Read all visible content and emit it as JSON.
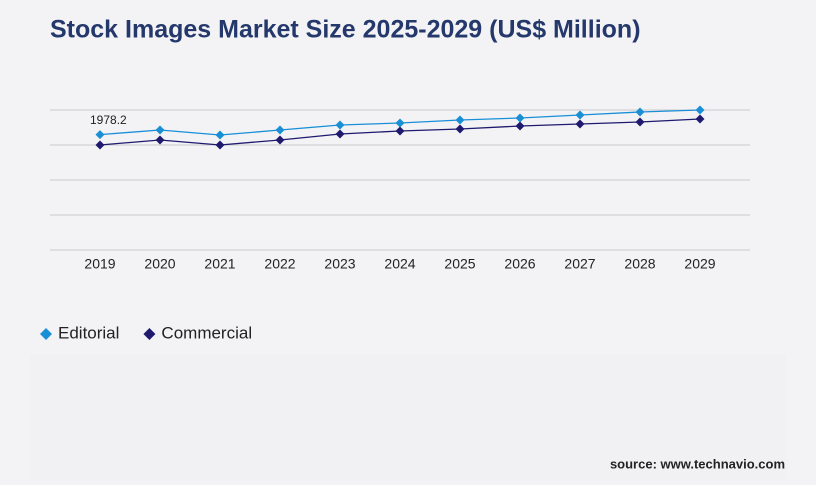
{
  "chart_data": {
    "type": "line",
    "title": "Stock Images Market Size 2025-2029 (US$ Million)",
    "categories": [
      "2019",
      "2020",
      "2021",
      "2022",
      "2023",
      "2024",
      "2025",
      "2026",
      "2027",
      "2028",
      "2029"
    ],
    "series": [
      {
        "name": "Editorial",
        "color": "#1a8fd6",
        "values": [
          1978.2,
          2057,
          1971,
          2057,
          2143,
          2177,
          2229,
          2263,
          2314,
          2366,
          2400
        ]
      },
      {
        "name": "Commercial",
        "color": "#1f1a6e",
        "values": [
          1800,
          1886,
          1800,
          1886,
          1989,
          2040,
          2074,
          2126,
          2160,
          2194,
          2246
        ]
      }
    ],
    "ylim": [
      0,
      2400
    ],
    "yticks": [
      0,
      600,
      1200,
      1800,
      2400
    ],
    "grid": true,
    "source": "source: www.technavio.com"
  }
}
